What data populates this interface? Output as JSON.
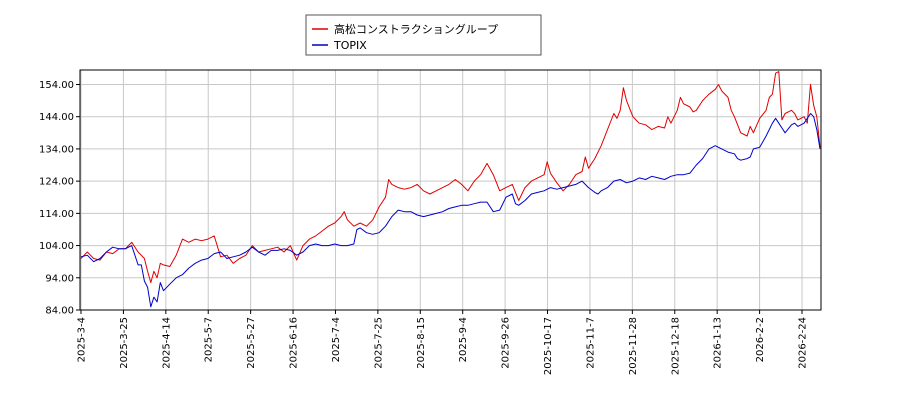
{
  "chart_data": {
    "type": "line",
    "ylim": [
      84.0,
      158.5
    ],
    "y_ticks": [
      "84.00",
      "94.00",
      "104.00",
      "114.00",
      "124.00",
      "134.00",
      "144.00",
      "154.00"
    ],
    "x_ticks": [
      "2025-3-4",
      "2025-3-25",
      "2025-4-14",
      "2025-5-7",
      "2025-5-27",
      "2025-6-16",
      "2025-7-4",
      "2025-7-25",
      "2025-8-15",
      "2025-9-4",
      "2025-9-26",
      "2025-10-17",
      "2025-11-7",
      "2025-11-28",
      "2025-12-18",
      "2026-1-13",
      "2026-2-2",
      "2026-2-24"
    ],
    "grid": true,
    "legend_position": "top-center",
    "series": [
      {
        "name": "高松コンストラクショングループ",
        "color": "#e00000",
        "points": [
          [
            0,
            100.0
          ],
          [
            2,
            102.0
          ],
          [
            4,
            100.0
          ],
          [
            6,
            99.5
          ],
          [
            8,
            102.0
          ],
          [
            10,
            101.5
          ],
          [
            12,
            103.0
          ],
          [
            14,
            103.0
          ],
          [
            16,
            105.0
          ],
          [
            18,
            102.0
          ],
          [
            20,
            100.0
          ],
          [
            21,
            96.0
          ],
          [
            22,
            92.5
          ],
          [
            23,
            96.0
          ],
          [
            24,
            94.0
          ],
          [
            25,
            98.5
          ],
          [
            26,
            98.0
          ],
          [
            28,
            97.5
          ],
          [
            30,
            101.0
          ],
          [
            32,
            106.0
          ],
          [
            34,
            105.0
          ],
          [
            36,
            106.0
          ],
          [
            38,
            105.5
          ],
          [
            40,
            106.0
          ],
          [
            42,
            107.0
          ],
          [
            44,
            100.5
          ],
          [
            46,
            101.0
          ],
          [
            48,
            98.5
          ],
          [
            50,
            100.0
          ],
          [
            52,
            101.0
          ],
          [
            54,
            104.0
          ],
          [
            56,
            102.0
          ],
          [
            58,
            102.5
          ],
          [
            60,
            103.0
          ],
          [
            62,
            103.5
          ],
          [
            64,
            102.0
          ],
          [
            66,
            104.0
          ],
          [
            68,
            99.5
          ],
          [
            70,
            104.0
          ],
          [
            72,
            106.0
          ],
          [
            74,
            107.0
          ],
          [
            76,
            108.5
          ],
          [
            78,
            110.0
          ],
          [
            80,
            111.0
          ],
          [
            82,
            113.0
          ],
          [
            83,
            114.5
          ],
          [
            84,
            112.0
          ],
          [
            86,
            110.0
          ],
          [
            88,
            111.0
          ],
          [
            90,
            110.0
          ],
          [
            92,
            112.0
          ],
          [
            94,
            116.0
          ],
          [
            96,
            119.0
          ],
          [
            97,
            124.5
          ],
          [
            98,
            123.0
          ],
          [
            100,
            122.0
          ],
          [
            102,
            121.5
          ],
          [
            104,
            122.0
          ],
          [
            106,
            123.0
          ],
          [
            108,
            121.0
          ],
          [
            110,
            120.0
          ],
          [
            112,
            121.0
          ],
          [
            114,
            122.0
          ],
          [
            116,
            123.0
          ],
          [
            118,
            124.5
          ],
          [
            120,
            123.0
          ],
          [
            122,
            121.0
          ],
          [
            124,
            124.0
          ],
          [
            126,
            126.0
          ],
          [
            128,
            129.5
          ],
          [
            130,
            126.0
          ],
          [
            132,
            121.0
          ],
          [
            134,
            122.0
          ],
          [
            136,
            123.0
          ],
          [
            138,
            118.0
          ],
          [
            140,
            122.0
          ],
          [
            142,
            124.0
          ],
          [
            144,
            125.0
          ],
          [
            146,
            126.0
          ],
          [
            147,
            130.0
          ],
          [
            148,
            126.5
          ],
          [
            150,
            123.5
          ],
          [
            152,
            121.0
          ],
          [
            154,
            123.0
          ],
          [
            156,
            126.0
          ],
          [
            158,
            127.0
          ],
          [
            159,
            131.5
          ],
          [
            160,
            128.0
          ],
          [
            162,
            131.0
          ],
          [
            164,
            135.0
          ],
          [
            166,
            140.0
          ],
          [
            168,
            145.0
          ],
          [
            169,
            143.5
          ],
          [
            170,
            146.0
          ],
          [
            171,
            153.0
          ],
          [
            172,
            149.0
          ],
          [
            174,
            144.0
          ],
          [
            176,
            142.0
          ],
          [
            178,
            141.5
          ],
          [
            180,
            140.0
          ],
          [
            182,
            141.0
          ],
          [
            184,
            140.5
          ],
          [
            185,
            144.0
          ],
          [
            186,
            142.0
          ],
          [
            188,
            146.0
          ],
          [
            189,
            150.0
          ],
          [
            190,
            148.0
          ],
          [
            192,
            147.0
          ],
          [
            193,
            145.5
          ],
          [
            194,
            146.0
          ],
          [
            196,
            149.0
          ],
          [
            198,
            151.0
          ],
          [
            200,
            152.5
          ],
          [
            201,
            154.0
          ],
          [
            202,
            152.0
          ],
          [
            204,
            150.0
          ],
          [
            205,
            146.0
          ],
          [
            206,
            144.0
          ],
          [
            208,
            139.0
          ],
          [
            210,
            138.0
          ],
          [
            211,
            141.0
          ],
          [
            212,
            139.0
          ],
          [
            214,
            143.5
          ],
          [
            216,
            146.0
          ],
          [
            217,
            150.0
          ],
          [
            218,
            151.0
          ],
          [
            219,
            157.5
          ],
          [
            220,
            158.0
          ],
          [
            221,
            143.0
          ],
          [
            222,
            145.0
          ],
          [
            224,
            146.0
          ],
          [
            225,
            145.0
          ],
          [
            226,
            143.0
          ],
          [
            228,
            144.0
          ],
          [
            229,
            142.0
          ],
          [
            230,
            154.0
          ],
          [
            231,
            147.5
          ],
          [
            232,
            144.0
          ],
          [
            233,
            134.5
          ]
        ]
      },
      {
        "name": "TOPIX",
        "color": "#0000cc",
        "points": [
          [
            0,
            100.5
          ],
          [
            2,
            101.0
          ],
          [
            4,
            99.0
          ],
          [
            6,
            100.0
          ],
          [
            8,
            102.0
          ],
          [
            10,
            103.5
          ],
          [
            12,
            103.0
          ],
          [
            14,
            103.0
          ],
          [
            16,
            104.0
          ],
          [
            18,
            98.0
          ],
          [
            19,
            98.0
          ],
          [
            20,
            93.0
          ],
          [
            21,
            91.0
          ],
          [
            22,
            85.0
          ],
          [
            23,
            88.0
          ],
          [
            24,
            86.5
          ],
          [
            25,
            92.5
          ],
          [
            26,
            90.0
          ],
          [
            28,
            92.0
          ],
          [
            30,
            94.0
          ],
          [
            32,
            95.0
          ],
          [
            34,
            97.0
          ],
          [
            36,
            98.5
          ],
          [
            38,
            99.5
          ],
          [
            40,
            100.0
          ],
          [
            42,
            101.5
          ],
          [
            44,
            102.0
          ],
          [
            46,
            100.0
          ],
          [
            48,
            100.5
          ],
          [
            50,
            101.0
          ],
          [
            52,
            102.0
          ],
          [
            54,
            103.5
          ],
          [
            56,
            102.0
          ],
          [
            58,
            101.0
          ],
          [
            60,
            102.5
          ],
          [
            62,
            102.5
          ],
          [
            64,
            103.0
          ],
          [
            66,
            102.5
          ],
          [
            68,
            101.0
          ],
          [
            70,
            102.0
          ],
          [
            72,
            104.0
          ],
          [
            74,
            104.5
          ],
          [
            76,
            104.0
          ],
          [
            78,
            104.0
          ],
          [
            80,
            104.5
          ],
          [
            82,
            104.0
          ],
          [
            84,
            104.0
          ],
          [
            86,
            104.5
          ],
          [
            87,
            109.0
          ],
          [
            88,
            109.5
          ],
          [
            90,
            108.0
          ],
          [
            92,
            107.5
          ],
          [
            94,
            108.0
          ],
          [
            96,
            110.0
          ],
          [
            98,
            113.0
          ],
          [
            100,
            115.0
          ],
          [
            102,
            114.5
          ],
          [
            104,
            114.5
          ],
          [
            106,
            113.5
          ],
          [
            108,
            113.0
          ],
          [
            110,
            113.5
          ],
          [
            112,
            114.0
          ],
          [
            114,
            114.5
          ],
          [
            116,
            115.5
          ],
          [
            118,
            116.0
          ],
          [
            120,
            116.5
          ],
          [
            122,
            116.5
          ],
          [
            124,
            117.0
          ],
          [
            126,
            117.5
          ],
          [
            128,
            117.5
          ],
          [
            130,
            114.5
          ],
          [
            132,
            115.0
          ],
          [
            134,
            119.0
          ],
          [
            136,
            120.0
          ],
          [
            137,
            117.0
          ],
          [
            138,
            116.5
          ],
          [
            140,
            118.0
          ],
          [
            142,
            120.0
          ],
          [
            144,
            120.5
          ],
          [
            146,
            121.0
          ],
          [
            148,
            122.0
          ],
          [
            150,
            121.5
          ],
          [
            152,
            122.0
          ],
          [
            154,
            122.5
          ],
          [
            156,
            123.0
          ],
          [
            158,
            124.0
          ],
          [
            160,
            122.0
          ],
          [
            162,
            120.5
          ],
          [
            163,
            120.0
          ],
          [
            164,
            121.0
          ],
          [
            166,
            122.0
          ],
          [
            168,
            124.0
          ],
          [
            170,
            124.5
          ],
          [
            172,
            123.5
          ],
          [
            174,
            124.0
          ],
          [
            176,
            125.0
          ],
          [
            178,
            124.5
          ],
          [
            180,
            125.5
          ],
          [
            182,
            125.0
          ],
          [
            184,
            124.5
          ],
          [
            186,
            125.5
          ],
          [
            188,
            126.0
          ],
          [
            190,
            126.0
          ],
          [
            192,
            126.5
          ],
          [
            194,
            129.0
          ],
          [
            196,
            131.0
          ],
          [
            198,
            134.0
          ],
          [
            200,
            135.0
          ],
          [
            202,
            134.0
          ],
          [
            204,
            133.0
          ],
          [
            206,
            132.5
          ],
          [
            207,
            131.0
          ],
          [
            208,
            130.5
          ],
          [
            210,
            131.0
          ],
          [
            211,
            131.5
          ],
          [
            212,
            134.0
          ],
          [
            214,
            134.5
          ],
          [
            216,
            138.0
          ],
          [
            218,
            142.0
          ],
          [
            219,
            143.5
          ],
          [
            220,
            142.0
          ],
          [
            222,
            139.0
          ],
          [
            224,
            141.5
          ],
          [
            225,
            142.0
          ],
          [
            226,
            141.0
          ],
          [
            228,
            142.0
          ],
          [
            230,
            145.0
          ],
          [
            231,
            144.0
          ],
          [
            232,
            140.0
          ],
          [
            233,
            134.0
          ]
        ]
      }
    ]
  }
}
